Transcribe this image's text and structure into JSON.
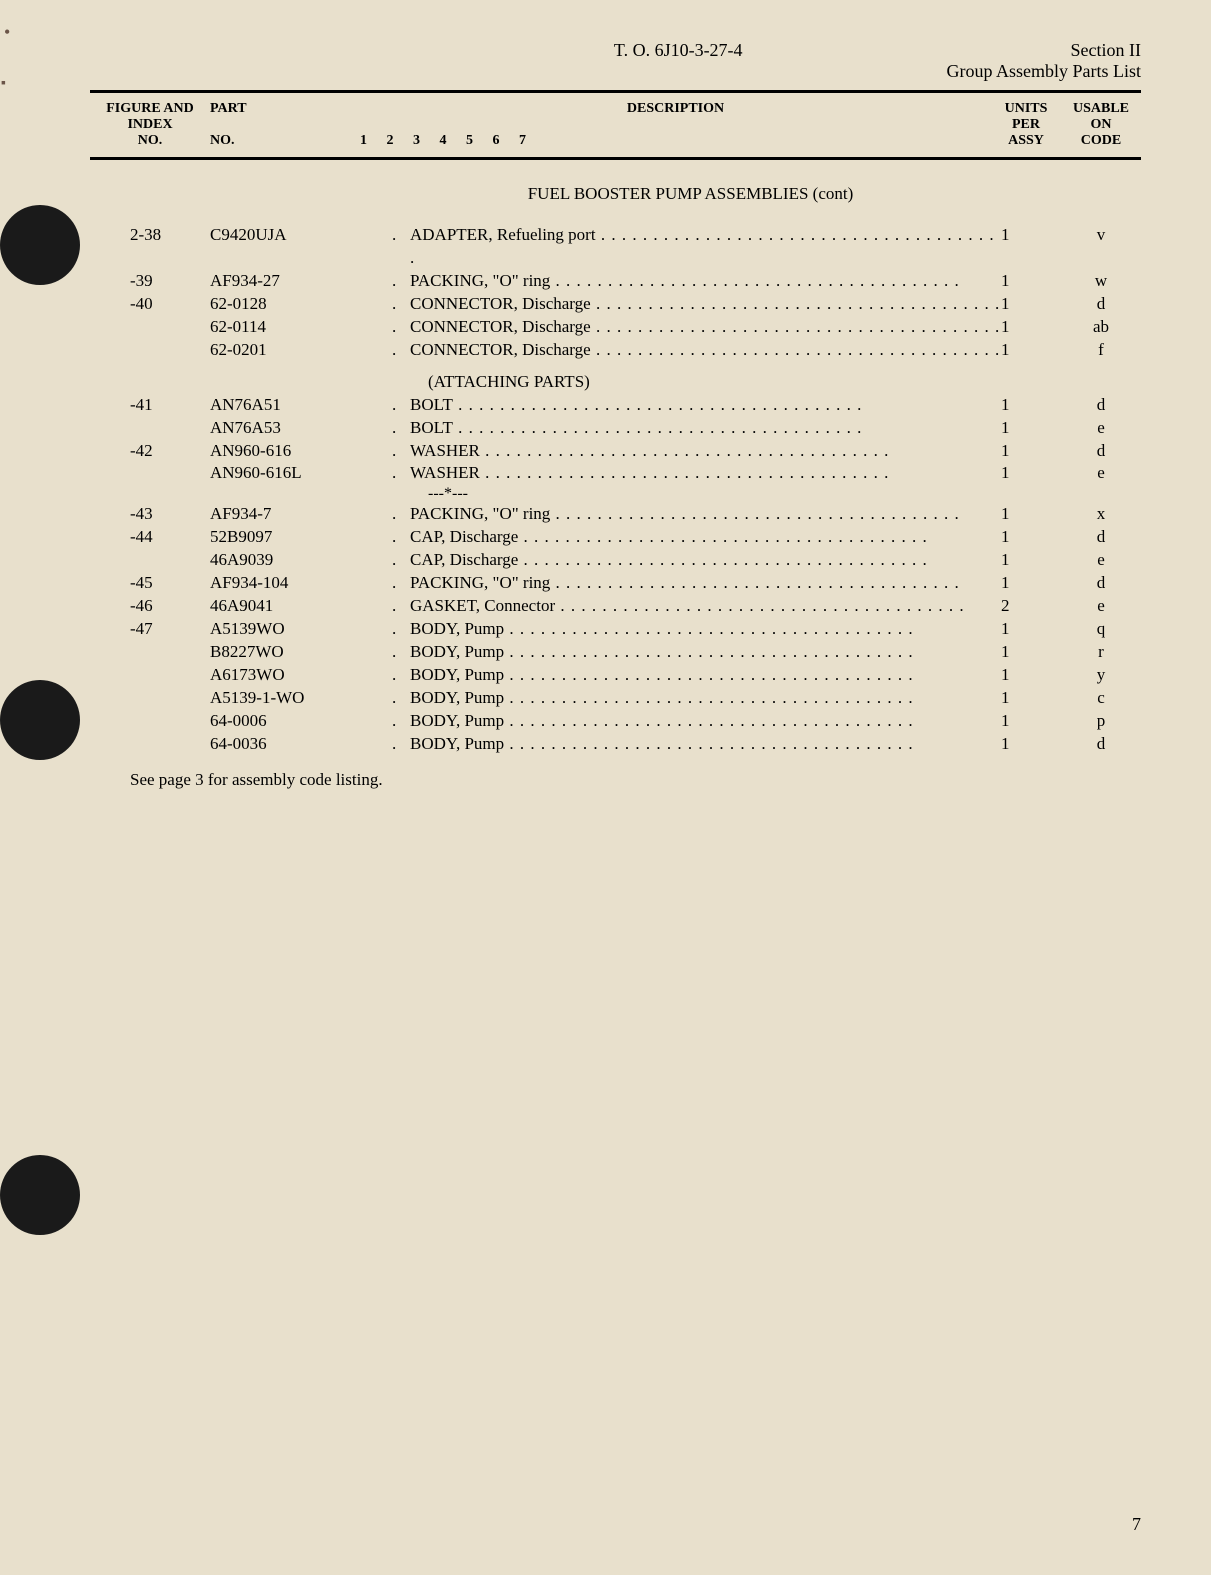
{
  "header": {
    "document_id": "T. O. 6J10-3-27-4",
    "section": "Section II",
    "section_title": "Group Assembly Parts List"
  },
  "columns": {
    "figure": "FIGURE AND INDEX NO.",
    "figure_l1": "FIGURE AND",
    "figure_l2": "INDEX",
    "figure_l3": "NO.",
    "part": "PART",
    "part_l2": "NO.",
    "description": "DESCRIPTION",
    "desc_nums": "1 2 3 4 5 6 7",
    "units_l1": "UNITS",
    "units_l2": "PER",
    "units_l3": "ASSY",
    "code_l1": "USABLE",
    "code_l2": "ON",
    "code_l3": "CODE"
  },
  "section_title": "FUEL BOOSTER PUMP ASSEMBLIES (cont)",
  "subsection_title": "(ATTACHING PARTS)",
  "separator_text": "---*---",
  "rows_top": [
    {
      "figure": "2-38",
      "part": "C9420UJA",
      "desc": "ADAPTER, Refueling port",
      "units": "1",
      "code": "v"
    },
    {
      "figure": "-39",
      "part": "AF934-27",
      "desc": "PACKING, \"O\" ring",
      "units": "1",
      "code": "w"
    },
    {
      "figure": "-40",
      "part": "62-0128",
      "desc": "CONNECTOR, Discharge",
      "units": "1",
      "code": "d"
    },
    {
      "figure": "",
      "part": "62-0114",
      "desc": "CONNECTOR, Discharge",
      "units": "1",
      "code": "ab"
    },
    {
      "figure": "",
      "part": "62-0201",
      "desc": "CONNECTOR, Discharge",
      "units": "1",
      "code": "f"
    }
  ],
  "rows_attach": [
    {
      "figure": "-41",
      "part": "AN76A51",
      "desc": "BOLT",
      "units": "1",
      "code": "d"
    },
    {
      "figure": "",
      "part": "AN76A53",
      "desc": "BOLT",
      "units": "1",
      "code": "e"
    },
    {
      "figure": "-42",
      "part": "AN960-616",
      "desc": "WASHER",
      "units": "1",
      "code": "d"
    },
    {
      "figure": "",
      "part": "AN960-616L",
      "desc": "WASHER",
      "units": "1",
      "code": "e"
    }
  ],
  "rows_bottom": [
    {
      "figure": "-43",
      "part": "AF934-7",
      "desc": "PACKING, \"O\" ring",
      "units": "1",
      "code": "x"
    },
    {
      "figure": "-44",
      "part": "52B9097",
      "desc": "CAP, Discharge",
      "units": "1",
      "code": "d"
    },
    {
      "figure": "",
      "part": "46A9039",
      "desc": "CAP, Discharge",
      "units": "1",
      "code": "e"
    },
    {
      "figure": "-45",
      "part": "AF934-104",
      "desc": "PACKING, \"O\" ring",
      "units": "1",
      "code": "d"
    },
    {
      "figure": "-46",
      "part": "46A9041",
      "desc": "GASKET, Connector",
      "units": "2",
      "code": "e"
    },
    {
      "figure": "-47",
      "part": "A5139WO",
      "desc": "BODY, Pump",
      "units": "1",
      "code": "q"
    },
    {
      "figure": "",
      "part": "B8227WO",
      "desc": "BODY, Pump",
      "units": "1",
      "code": "r"
    },
    {
      "figure": "",
      "part": "A6173WO",
      "desc": "BODY, Pump",
      "units": "1",
      "code": "y"
    },
    {
      "figure": "",
      "part": "A5139-1-WO",
      "desc": "BODY, Pump",
      "units": "1",
      "code": "c"
    },
    {
      "figure": "",
      "part": "64-0006",
      "desc": "BODY, Pump",
      "units": "1",
      "code": "p"
    },
    {
      "figure": "",
      "part": "64-0036",
      "desc": "BODY, Pump",
      "units": "1",
      "code": "d"
    }
  ],
  "footnote": "See page 3 for assembly code listing.",
  "page_number": "7"
}
